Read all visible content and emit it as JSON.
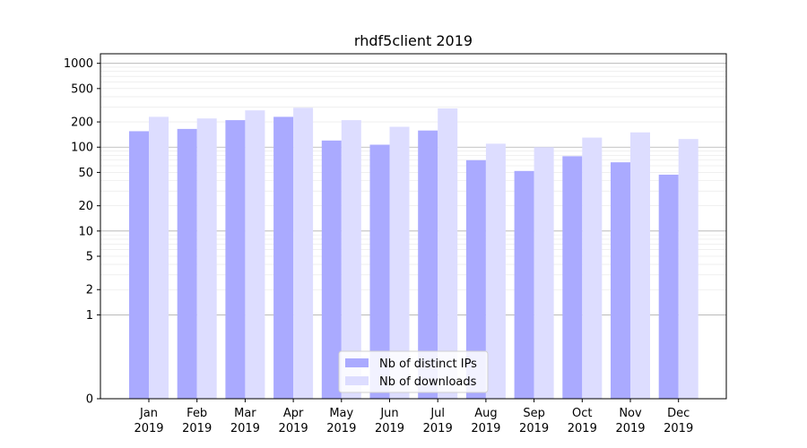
{
  "chart_data": {
    "type": "bar",
    "title": "rhdf5client 2019",
    "xlabel": "",
    "ylabel": "",
    "yscale": "symlog",
    "ylim": [
      0,
      1300
    ],
    "yticks": [
      0,
      1,
      2,
      5,
      10,
      20,
      50,
      100,
      200,
      500,
      1000
    ],
    "categories": [
      [
        "Jan",
        "2019"
      ],
      [
        "Feb",
        "2019"
      ],
      [
        "Mar",
        "2019"
      ],
      [
        "Apr",
        "2019"
      ],
      [
        "May",
        "2019"
      ],
      [
        "Jun",
        "2019"
      ],
      [
        "Jul",
        "2019"
      ],
      [
        "Aug",
        "2019"
      ],
      [
        "Sep",
        "2019"
      ],
      [
        "Oct",
        "2019"
      ],
      [
        "Nov",
        "2019"
      ],
      [
        "Dec",
        "2019"
      ]
    ],
    "series": [
      {
        "name": "Nb of distinct IPs",
        "color": "#aaaaff",
        "values": [
          155,
          165,
          210,
          230,
          120,
          107,
          158,
          70,
          52,
          78,
          66,
          47
        ]
      },
      {
        "name": "Nb of downloads",
        "color": "#ddddff",
        "values": [
          230,
          220,
          275,
          295,
          210,
          175,
          290,
          110,
          100,
          130,
          150,
          125
        ]
      }
    ],
    "grid": true,
    "legend_position": "bottom-center"
  }
}
